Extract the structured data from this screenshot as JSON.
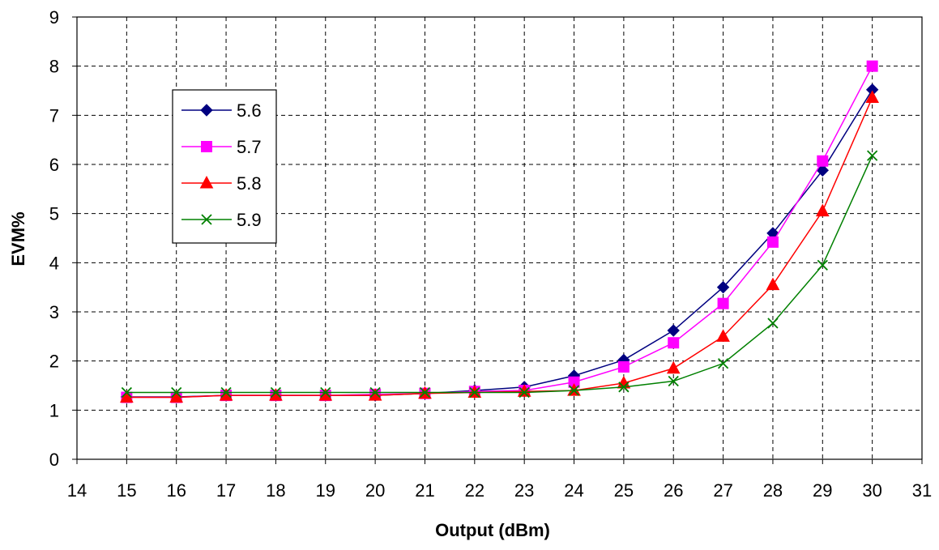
{
  "chart_data": {
    "type": "line",
    "title": "",
    "xlabel": "Output (dBm)",
    "ylabel": "EVM%",
    "xlim": [
      14,
      31
    ],
    "ylim": [
      0,
      9
    ],
    "xticks": [
      "14",
      "15",
      "16",
      "17",
      "18",
      "19",
      "20",
      "21",
      "22",
      "23",
      "24",
      "25",
      "26",
      "27",
      "28",
      "29",
      "30",
      "31"
    ],
    "yticks": [
      "0",
      "1",
      "2",
      "3",
      "4",
      "5",
      "6",
      "7",
      "8",
      "9"
    ],
    "grid": true,
    "legend_position": "top-left",
    "x": [
      15,
      16,
      17,
      18,
      19,
      20,
      21,
      22,
      23,
      24,
      25,
      26,
      27,
      28,
      29,
      30
    ],
    "series": [
      {
        "name": "5.6",
        "color": "#000080",
        "marker": "diamond",
        "values": [
          1.27,
          1.27,
          1.3,
          1.3,
          1.3,
          1.3,
          1.34,
          1.4,
          1.47,
          1.7,
          2.02,
          2.62,
          3.5,
          4.6,
          5.88,
          7.52
        ]
      },
      {
        "name": "5.7",
        "color": "#ff00ff",
        "marker": "square",
        "values": [
          1.26,
          1.26,
          1.3,
          1.3,
          1.3,
          1.32,
          1.34,
          1.38,
          1.4,
          1.57,
          1.88,
          2.37,
          3.17,
          4.42,
          6.07,
          8.0
        ]
      },
      {
        "name": "5.8",
        "color": "#ff0000",
        "marker": "triangle",
        "values": [
          1.26,
          1.26,
          1.3,
          1.3,
          1.3,
          1.3,
          1.34,
          1.36,
          1.38,
          1.4,
          1.55,
          1.85,
          2.5,
          3.55,
          5.05,
          7.36
        ]
      },
      {
        "name": "5.9",
        "color": "#008000",
        "marker": "x",
        "values": [
          1.36,
          1.36,
          1.36,
          1.36,
          1.36,
          1.36,
          1.36,
          1.36,
          1.36,
          1.4,
          1.47,
          1.59,
          1.95,
          2.77,
          3.95,
          6.18
        ]
      }
    ]
  }
}
